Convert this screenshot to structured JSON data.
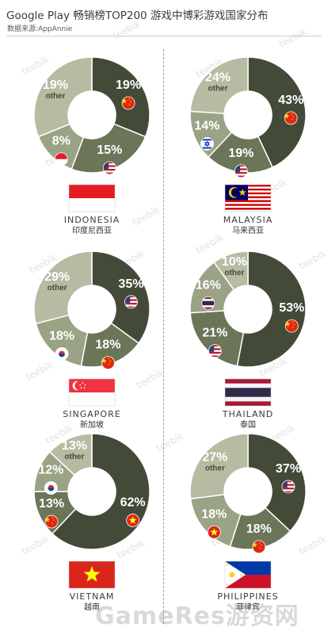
{
  "header": {
    "title": "Google Play 畅销榜TOP200 游戏中博彩游戏国家分布",
    "source": "数据来源:AppAnnie"
  },
  "watermark": {
    "text": "teebik",
    "footer": "GameRes游资网"
  },
  "colors": {
    "dark": "#444a38",
    "medium": "#6b7558",
    "light": "#9aa385",
    "lighter": "#b5bca2",
    "label": "#ffffff",
    "country_en": "#3c3c3c"
  },
  "chart_data": [
    {
      "type": "pie",
      "country_en": "INDONESIA",
      "country_cn": "印度尼西亚",
      "flag": "indonesia",
      "slices": [
        {
          "value": 19,
          "label": "19%",
          "flag": "china"
        },
        {
          "value": 15,
          "label": "15%",
          "flag": "usa"
        },
        {
          "value": 8,
          "label": "8%",
          "flag": "indonesia"
        },
        {
          "value": 19,
          "label": "19%",
          "sublabel": "other"
        }
      ]
    },
    {
      "type": "pie",
      "country_en": "MALAYSIA",
      "country_cn": "马来西亚",
      "flag": "malaysia",
      "slices": [
        {
          "value": 43,
          "label": "43%",
          "flag": "china"
        },
        {
          "value": 19,
          "label": "19%",
          "flag": "usa"
        },
        {
          "value": 14,
          "label": "14%",
          "flag": "israel"
        },
        {
          "value": 24,
          "label": "24%",
          "sublabel": "other"
        }
      ]
    },
    {
      "type": "pie",
      "country_en": "SINGAPORE",
      "country_cn": "新加坡",
      "flag": "singapore",
      "slices": [
        {
          "value": 35,
          "label": "35%",
          "flag": "usa"
        },
        {
          "value": 18,
          "label": "18%",
          "flag": "china"
        },
        {
          "value": 18,
          "label": "18%",
          "flag": "korea"
        },
        {
          "value": 29,
          "label": "29%",
          "sublabel": "other"
        }
      ]
    },
    {
      "type": "pie",
      "country_en": "THAILAND",
      "country_cn": "泰国",
      "flag": "thailand",
      "slices": [
        {
          "value": 53,
          "label": "53%",
          "flag": "china"
        },
        {
          "value": 21,
          "label": "21%",
          "flag": "usa"
        },
        {
          "value": 16,
          "label": "16%",
          "flag": "thailand"
        },
        {
          "value": 10,
          "label": "10%",
          "sublabel": "other"
        }
      ]
    },
    {
      "type": "pie",
      "country_en": "VIETNAM",
      "country_cn": "越南",
      "flag": "vietnam",
      "slices": [
        {
          "value": 62,
          "label": "62%",
          "flag": "vietnam"
        },
        {
          "value": 13,
          "label": "13%",
          "flag": "china"
        },
        {
          "value": 12,
          "label": "12%",
          "flag": "korea"
        },
        {
          "value": 13,
          "label": "13%",
          "sublabel": "other"
        }
      ]
    },
    {
      "type": "pie",
      "country_en": "PHILIPPINES",
      "country_cn": "菲律宾",
      "flag": "philippines",
      "slices": [
        {
          "value": 37,
          "label": "37%",
          "flag": "usa"
        },
        {
          "value": 18,
          "label": "18%",
          "flag": "china"
        },
        {
          "value": 18,
          "label": "18%",
          "flag": "vietnam"
        },
        {
          "value": 27,
          "label": "27%",
          "sublabel": "other"
        }
      ]
    }
  ]
}
